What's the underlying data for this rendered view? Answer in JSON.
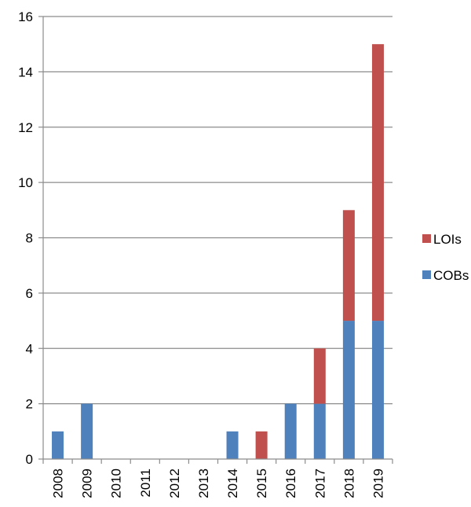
{
  "chart_data": {
    "type": "bar",
    "stacked": true,
    "title": "",
    "xlabel": "",
    "ylabel": "",
    "categories": [
      "2008",
      "2009",
      "2010",
      "2011",
      "2012",
      "2013",
      "2014",
      "2015",
      "2016",
      "2017",
      "2018",
      "2019"
    ],
    "series": [
      {
        "name": "COBs",
        "color": "#4f81bd",
        "values": [
          1,
          2,
          0,
          0,
          0,
          0,
          1,
          0,
          2,
          2,
          5,
          5
        ]
      },
      {
        "name": "LOIs",
        "color": "#c0504d",
        "values": [
          0,
          0,
          0,
          0,
          0,
          0,
          0,
          1,
          0,
          2,
          4,
          10
        ]
      }
    ],
    "ylim": [
      0,
      16
    ],
    "yticks": [
      0,
      2,
      4,
      6,
      8,
      10,
      12,
      14,
      16
    ],
    "grid": true,
    "legend_position": "right",
    "legend_order": [
      "LOIs",
      "COBs"
    ]
  }
}
